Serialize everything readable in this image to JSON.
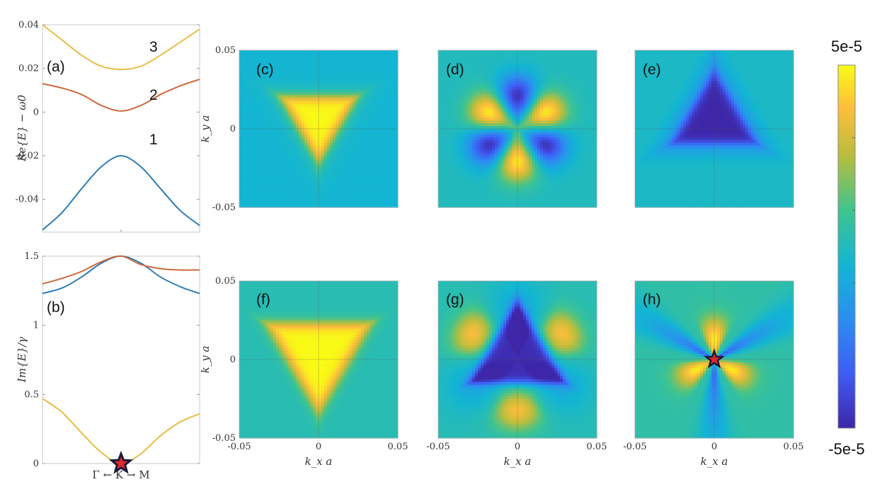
{
  "colors": {
    "band1": "#2d7db8",
    "band2": "#cc6a3c",
    "band3": "#e8bd45",
    "marker_fill": "#e0262e",
    "marker_stroke": "#1b1b3a"
  },
  "colorbar": {
    "max_label": "5e-5",
    "min_label": "-5e-5",
    "colormap": "parula"
  },
  "chart_data": [
    {
      "panel": "(a)",
      "type": "line",
      "ylabel": "Re{E} − ω0",
      "ylim": [
        -0.055,
        0.04
      ],
      "yticks": [
        "0.04",
        "0.02",
        "0",
        "-0.02",
        "-0.04"
      ],
      "x": [
        -1,
        -0.75,
        -0.5,
        -0.25,
        0,
        0.25,
        0.5,
        0.75,
        1
      ],
      "series": [
        {
          "name": "1",
          "color": "#2d7db8",
          "values": [
            -0.054,
            -0.046,
            -0.035,
            -0.025,
            -0.02,
            -0.025,
            -0.035,
            -0.045,
            -0.052
          ]
        },
        {
          "name": "2",
          "color": "#cc6a3c",
          "values": [
            0.013,
            0.011,
            0.008,
            0.003,
            0.0005,
            0.003,
            0.008,
            0.012,
            0.015
          ]
        },
        {
          "name": "3",
          "color": "#e8bd45",
          "values": [
            0.04,
            0.033,
            0.026,
            0.021,
            0.0195,
            0.021,
            0.026,
            0.032,
            0.038
          ]
        }
      ],
      "series_labels": [
        "1",
        "2",
        "3"
      ]
    },
    {
      "panel": "(b)",
      "type": "line",
      "ylabel": "Im{E}/γ",
      "xlabel": "Γ ← K → M",
      "ylim": [
        0,
        1.5
      ],
      "yticks": [
        "1.5",
        "1",
        "0.5",
        "0"
      ],
      "x": [
        -1,
        -0.75,
        -0.5,
        -0.25,
        0,
        0.25,
        0.5,
        0.75,
        1
      ],
      "series": [
        {
          "color": "#2d7db8",
          "values": [
            1.23,
            1.27,
            1.35,
            1.45,
            1.5,
            1.45,
            1.35,
            1.28,
            1.23
          ]
        },
        {
          "color": "#cc6a3c",
          "values": [
            1.3,
            1.34,
            1.39,
            1.46,
            1.5,
            1.44,
            1.41,
            1.4,
            1.4
          ]
        },
        {
          "color": "#e8bd45",
          "values": [
            0.47,
            0.37,
            0.22,
            0.08,
            0.0,
            0.07,
            0.2,
            0.3,
            0.36
          ]
        }
      ],
      "marker": {
        "x": 0,
        "y": 0,
        "shape": "star"
      }
    },
    {
      "panel": "(c)",
      "type": "heatmap",
      "pattern": "tri_pos_down",
      "xlim": [
        -0.05,
        0.05
      ],
      "ylim": [
        -0.05,
        0.05
      ],
      "ylabel": "k_y a",
      "yticks": [
        "0.05",
        "0",
        "-0.05"
      ]
    },
    {
      "panel": "(d)",
      "type": "heatmap",
      "pattern": "petals",
      "xlim": [
        -0.05,
        0.05
      ],
      "ylim": [
        -0.05,
        0.05
      ]
    },
    {
      "panel": "(e)",
      "type": "heatmap",
      "pattern": "tri_neg_up",
      "xlim": [
        -0.05,
        0.05
      ],
      "ylim": [
        -0.05,
        0.05
      ]
    },
    {
      "panel": "(f)",
      "type": "heatmap",
      "pattern": "tri_pos_down_wide",
      "xlim": [
        -0.05,
        0.05
      ],
      "ylim": [
        -0.05,
        0.05
      ],
      "ylabel": "k_y a",
      "xlabel": "k_x a",
      "yticks": [
        "0.05",
        "0",
        "-0.05"
      ],
      "xticks": [
        "-0.05",
        "0",
        "0.05"
      ]
    },
    {
      "panel": "(g)",
      "type": "heatmap",
      "pattern": "tri_neg_lobes",
      "xlim": [
        -0.05,
        0.05
      ],
      "ylim": [
        -0.05,
        0.05
      ],
      "xlabel": "k_x a",
      "xticks": [
        "-0.05",
        "0",
        "0.05"
      ]
    },
    {
      "panel": "(h)",
      "type": "heatmap",
      "pattern": "star_arms",
      "xlim": [
        -0.05,
        0.05
      ],
      "ylim": [
        -0.05,
        0.05
      ],
      "xlabel": "k_x a",
      "xticks": [
        "-0.05",
        "0",
        "0.05"
      ],
      "marker": {
        "x": 0,
        "y": 0,
        "shape": "star"
      }
    }
  ]
}
